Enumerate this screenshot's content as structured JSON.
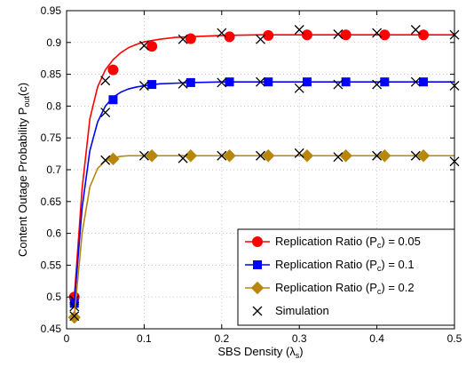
{
  "chart_data": {
    "type": "line",
    "title": "",
    "xlabel": {
      "main": "SBS Density (λ",
      "sub": "s",
      "tail": ")"
    },
    "ylabel": {
      "main": "Content Outage Probability  P",
      "sub": "out",
      "tail": "(c)"
    },
    "xlim": [
      0,
      0.5
    ],
    "ylim": [
      0.45,
      0.95
    ],
    "xticks": [
      0,
      0.1,
      0.2,
      0.3,
      0.4,
      0.5
    ],
    "xtick_labels": [
      "0",
      "0.1",
      "0.2",
      "0.3",
      "0.4",
      "0.5"
    ],
    "yticks": [
      0.45,
      0.5,
      0.55,
      0.6,
      0.65,
      0.7,
      0.75,
      0.8,
      0.85,
      0.9,
      0.95
    ],
    "ytick_labels": [
      "0.45",
      "0.5",
      "0.55",
      "0.6",
      "0.65",
      "0.7",
      "0.75",
      "0.8",
      "0.85",
      "0.9",
      "0.95"
    ],
    "grid": true,
    "legend_position": "bottom-right",
    "series": [
      {
        "name": "Replication Ratio (P_c) = 0.05",
        "legend": {
          "pre": "Replication Ratio (P",
          "sub": "c",
          "post": ") = 0.05"
        },
        "color": "#ff0000",
        "marker": "circle",
        "line_x": [
          0.01,
          0.02,
          0.03,
          0.04,
          0.05,
          0.06,
          0.07,
          0.08,
          0.09,
          0.1,
          0.12,
          0.14,
          0.16,
          0.2,
          0.25,
          0.3,
          0.35,
          0.4,
          0.45,
          0.5
        ],
        "line_y": [
          0.5,
          0.67,
          0.78,
          0.83,
          0.857,
          0.873,
          0.884,
          0.892,
          0.897,
          0.901,
          0.905,
          0.908,
          0.909,
          0.911,
          0.912,
          0.912,
          0.912,
          0.912,
          0.912,
          0.912
        ],
        "marker_x": [
          0.01,
          0.06,
          0.11,
          0.16,
          0.21,
          0.26,
          0.31,
          0.36,
          0.41,
          0.46
        ],
        "marker_y": [
          0.5,
          0.857,
          0.894,
          0.906,
          0.909,
          0.911,
          0.912,
          0.912,
          0.912,
          0.912
        ],
        "sim_x": [
          0.01,
          0.05,
          0.1,
          0.15,
          0.2,
          0.25,
          0.3,
          0.35,
          0.4,
          0.45,
          0.5
        ],
        "sim_y": [
          0.495,
          0.84,
          0.895,
          0.905,
          0.915,
          0.905,
          0.92,
          0.913,
          0.915,
          0.92,
          0.912
        ]
      },
      {
        "name": "Replication Ratio (P_c) = 0.1",
        "legend": {
          "pre": "Replication Ratio (P",
          "sub": "c",
          "post": ") = 0.1"
        },
        "color": "#0000ff",
        "marker": "square",
        "line_x": [
          0.01,
          0.02,
          0.03,
          0.04,
          0.05,
          0.06,
          0.07,
          0.08,
          0.09,
          0.1,
          0.12,
          0.14,
          0.16,
          0.2,
          0.25,
          0.3,
          0.35,
          0.4,
          0.45,
          0.5
        ],
        "line_y": [
          0.49,
          0.64,
          0.73,
          0.775,
          0.8,
          0.814,
          0.822,
          0.827,
          0.83,
          0.832,
          0.835,
          0.836,
          0.837,
          0.838,
          0.838,
          0.838,
          0.838,
          0.838,
          0.838,
          0.838
        ],
        "marker_x": [
          0.01,
          0.06,
          0.11,
          0.16,
          0.21,
          0.26,
          0.31,
          0.36,
          0.41,
          0.46
        ],
        "marker_y": [
          0.49,
          0.81,
          0.834,
          0.837,
          0.838,
          0.838,
          0.838,
          0.838,
          0.838,
          0.838
        ],
        "sim_x": [
          0.01,
          0.05,
          0.1,
          0.15,
          0.2,
          0.25,
          0.3,
          0.35,
          0.4,
          0.45,
          0.5
        ],
        "sim_y": [
          0.485,
          0.79,
          0.832,
          0.835,
          0.837,
          0.838,
          0.828,
          0.834,
          0.834,
          0.838,
          0.832
        ]
      },
      {
        "name": "Replication Ratio (P_c) = 0.2",
        "legend": {
          "pre": "Replication Ratio (P",
          "sub": "c",
          "post": ") = 0.2"
        },
        "color": "#b8860b",
        "marker": "diamond",
        "line_x": [
          0.01,
          0.02,
          0.03,
          0.04,
          0.05,
          0.06,
          0.07,
          0.08,
          0.09,
          0.1,
          0.12,
          0.14,
          0.16,
          0.2,
          0.25,
          0.3,
          0.35,
          0.4,
          0.45,
          0.5
        ],
        "line_y": [
          0.47,
          0.6,
          0.673,
          0.702,
          0.714,
          0.719,
          0.721,
          0.722,
          0.722,
          0.722,
          0.722,
          0.722,
          0.722,
          0.722,
          0.722,
          0.722,
          0.722,
          0.722,
          0.722,
          0.722
        ],
        "marker_x": [
          0.01,
          0.06,
          0.11,
          0.16,
          0.21,
          0.26,
          0.31,
          0.36,
          0.41,
          0.46
        ],
        "marker_y": [
          0.468,
          0.717,
          0.722,
          0.722,
          0.722,
          0.722,
          0.722,
          0.722,
          0.722,
          0.722
        ],
        "sim_x": [
          0.01,
          0.05,
          0.1,
          0.15,
          0.2,
          0.25,
          0.3,
          0.35,
          0.4,
          0.45,
          0.5
        ],
        "sim_y": [
          0.47,
          0.715,
          0.722,
          0.718,
          0.722,
          0.722,
          0.726,
          0.72,
          0.722,
          0.722,
          0.713
        ]
      }
    ],
    "simulation_legend": {
      "label": "Simulation",
      "marker": "x",
      "color": "#000000"
    }
  }
}
